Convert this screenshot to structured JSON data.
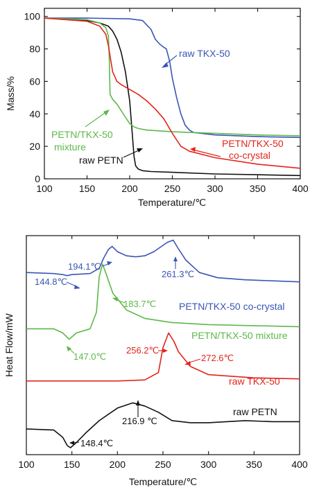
{
  "chart_data": [
    {
      "type": "line",
      "xlabel": "Temperature/℃",
      "ylabel": "Mass/%",
      "xlim": [
        100,
        400
      ],
      "ylim": [
        0,
        105
      ],
      "xticks": [
        "100",
        "150",
        "200",
        "250",
        "300",
        "350",
        "400"
      ],
      "yticks": [
        "0",
        "20",
        "40",
        "60",
        "80",
        "100"
      ],
      "grid": false,
      "series": [
        {
          "name": "raw TKX-50",
          "color": "#3a55b4",
          "x": [
            100,
            150,
            200,
            215,
            225,
            230,
            235,
            240,
            243,
            247,
            250,
            255,
            260,
            265,
            270,
            275,
            300,
            350,
            400
          ],
          "y": [
            99,
            99,
            98.5,
            97.5,
            92,
            86,
            83,
            81,
            80,
            72,
            62,
            50,
            40,
            33,
            30,
            28.5,
            27,
            26,
            25.5
          ]
        },
        {
          "name": "raw PETN",
          "color": "#111111",
          "x": [
            100,
            150,
            165,
            175,
            180,
            185,
            190,
            195,
            200,
            203,
            205,
            207,
            210,
            215,
            225,
            250,
            300,
            350,
            400
          ],
          "y": [
            99,
            97.5,
            96,
            94,
            91,
            86,
            78,
            66,
            48,
            28,
            14,
            8,
            6,
            5,
            4.5,
            4,
            3,
            2.5,
            2
          ]
        },
        {
          "name": "PETN/TKX-50 mixture",
          "color": "#5cb848",
          "x": [
            100,
            150,
            165,
            172,
            175,
            176,
            177,
            180,
            185,
            190,
            195,
            200,
            205,
            210,
            220,
            250,
            300,
            350,
            400
          ],
          "y": [
            99,
            98,
            96,
            93,
            88,
            75,
            52,
            49,
            46,
            42,
            38,
            34,
            32,
            31,
            30,
            29,
            28,
            27,
            26.5
          ]
        },
        {
          "name": "PETN/TKX-50 co-crystal",
          "color": "#e2231a",
          "x": [
            100,
            150,
            165,
            172,
            175,
            180,
            185,
            190,
            200,
            210,
            220,
            230,
            240,
            250,
            255,
            260,
            270,
            300,
            350,
            400
          ],
          "y": [
            99,
            97,
            94,
            89,
            82,
            66,
            60,
            58,
            55,
            52,
            48,
            43,
            37,
            28,
            24,
            20,
            17,
            13,
            9,
            6.5
          ]
        }
      ],
      "annotations": [
        {
          "text": "raw TKX-50",
          "color": "#3a55b4"
        },
        {
          "text": "PETN/TKX-50",
          "color": "#5cb848"
        },
        {
          "text": "mixture",
          "color": "#5cb848"
        },
        {
          "text": "raw PETN",
          "color": "#111111"
        },
        {
          "text": "PETN/TKX-50",
          "color": "#e2231a"
        },
        {
          "text": "co-crystal",
          "color": "#e2231a"
        }
      ]
    },
    {
      "type": "line",
      "xlabel": "Temperature/℃",
      "ylabel": "Heat Flow/mW",
      "xlim": [
        100,
        400
      ],
      "ylim": [
        0,
        100
      ],
      "xticks": [
        "100",
        "150",
        "200",
        "250",
        "300",
        "350",
        "400"
      ],
      "grid": false,
      "series": [
        {
          "name": "PETN/TKX-50 co-crystal",
          "color": "#3a55b4",
          "x": [
            100,
            130,
            140,
            144.8,
            150,
            170,
            180,
            185,
            190,
            194.1,
            200,
            210,
            220,
            230,
            240,
            250,
            255,
            261.3,
            266,
            275,
            290,
            310,
            340,
            370,
            400
          ],
          "y": [
            84,
            83.5,
            83,
            82.5,
            83,
            83.5,
            86,
            91,
            95,
            96.5,
            94,
            92,
            91.5,
            92,
            94,
            97,
            98.5,
            99.5,
            96,
            90,
            84,
            81.5,
            80.5,
            80,
            79.5
          ]
        },
        {
          "name": "PETN/TKX-50 mixture",
          "color": "#5cb848",
          "x": [
            100,
            130,
            140,
            147.0,
            155,
            170,
            177,
            180,
            183.7,
            187,
            195,
            210,
            230,
            260,
            300,
            350,
            400
          ],
          "y": [
            57,
            57,
            55,
            52,
            55,
            57,
            65,
            82,
            88,
            84,
            74,
            66,
            62,
            60,
            59,
            58.5,
            58
          ]
        },
        {
          "name": "raw TKX-50",
          "color": "#e2231a",
          "x": [
            100,
            200,
            230,
            245,
            250,
            256.2,
            262,
            267,
            272.6,
            280,
            300,
            350,
            400
          ],
          "y": [
            32,
            32,
            32.5,
            36,
            48,
            55,
            51,
            46,
            43,
            39,
            35,
            33.5,
            33
          ]
        },
        {
          "name": "raw PETN",
          "color": "#111111",
          "x": [
            100,
            130,
            140,
            145,
            148.4,
            155,
            165,
            180,
            200,
            216.9,
            230,
            245,
            260,
            280,
            300,
            340,
            370,
            400
          ],
          "y": [
            9,
            8.5,
            5,
            1,
            0,
            2.5,
            7,
            13,
            19,
            21.5,
            20,
            17,
            13,
            12,
            12,
            13,
            12.5,
            12.5
          ]
        }
      ],
      "annotations": [
        {
          "text": "194.1℃",
          "color": "#3a55b4"
        },
        {
          "text": "144.8℃",
          "color": "#3a55b4"
        },
        {
          "text": "261.3℃",
          "color": "#3a55b4"
        },
        {
          "text": "PETN/TKX-50 co-crystal",
          "color": "#3a55b4"
        },
        {
          "text": "183.7℃",
          "color": "#5cb848"
        },
        {
          "text": "PETN/TKX-50 mixture",
          "color": "#5cb848"
        },
        {
          "text": "147.0℃",
          "color": "#5cb848"
        },
        {
          "text": "256.2℃",
          "color": "#e2231a"
        },
        {
          "text": "272.6℃",
          "color": "#e2231a"
        },
        {
          "text": "raw TKX-50",
          "color": "#e2231a"
        },
        {
          "text": "216.9 ℃",
          "color": "#111111"
        },
        {
          "text": "raw PETN",
          "color": "#111111"
        },
        {
          "text": "148.4℃",
          "color": "#111111"
        }
      ]
    }
  ]
}
